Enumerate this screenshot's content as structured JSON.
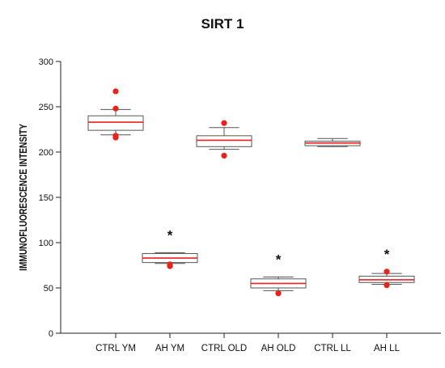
{
  "chart_data": {
    "type": "box",
    "title": "SIRT 1",
    "ylabel": "IMMUNOFLUORESCENCE INTENSITY",
    "xlabel": "",
    "ylim": [
      0,
      300
    ],
    "yticks": [
      0,
      50,
      100,
      150,
      200,
      250,
      300
    ],
    "categories": [
      "CTRL YM",
      "AH YM",
      "CTRL OLD",
      "AH OLD",
      "CTRL LL",
      "AH LL"
    ],
    "boxes": [
      {
        "category": "CTRL YM",
        "whisker_low": 219,
        "q1": 224,
        "median": 233,
        "q3": 240,
        "whisker_high": 247,
        "outliers": [
          267,
          248,
          218,
          216
        ],
        "annotation": ""
      },
      {
        "category": "AH YM",
        "whisker_low": 77,
        "q1": 78,
        "median": 83,
        "q3": 88,
        "whisker_high": 89,
        "outliers": [
          76,
          74
        ],
        "annotation": "*"
      },
      {
        "category": "CTRL OLD",
        "whisker_low": 203,
        "q1": 206,
        "median": 213,
        "q3": 218,
        "whisker_high": 227,
        "outliers": [
          232,
          196
        ],
        "annotation": ""
      },
      {
        "category": "AH OLD",
        "whisker_low": 47,
        "q1": 50,
        "median": 55,
        "q3": 60,
        "whisker_high": 62,
        "outliers": [
          44
        ],
        "annotation": "*"
      },
      {
        "category": "CTRL LL",
        "whisker_low": 206,
        "q1": 207,
        "median": 210,
        "q3": 212,
        "whisker_high": 215,
        "outliers": [],
        "annotation": ""
      },
      {
        "category": "AH LL",
        "whisker_low": 54,
        "q1": 56,
        "median": 59,
        "q3": 63,
        "whisker_high": 66,
        "outliers": [
          68,
          53
        ],
        "annotation": "*"
      }
    ],
    "colors": {
      "median": "#e8231c",
      "outlier": "#e8231c",
      "box": "#555555",
      "axis": "#222222"
    },
    "grid": false,
    "legend": "none"
  }
}
